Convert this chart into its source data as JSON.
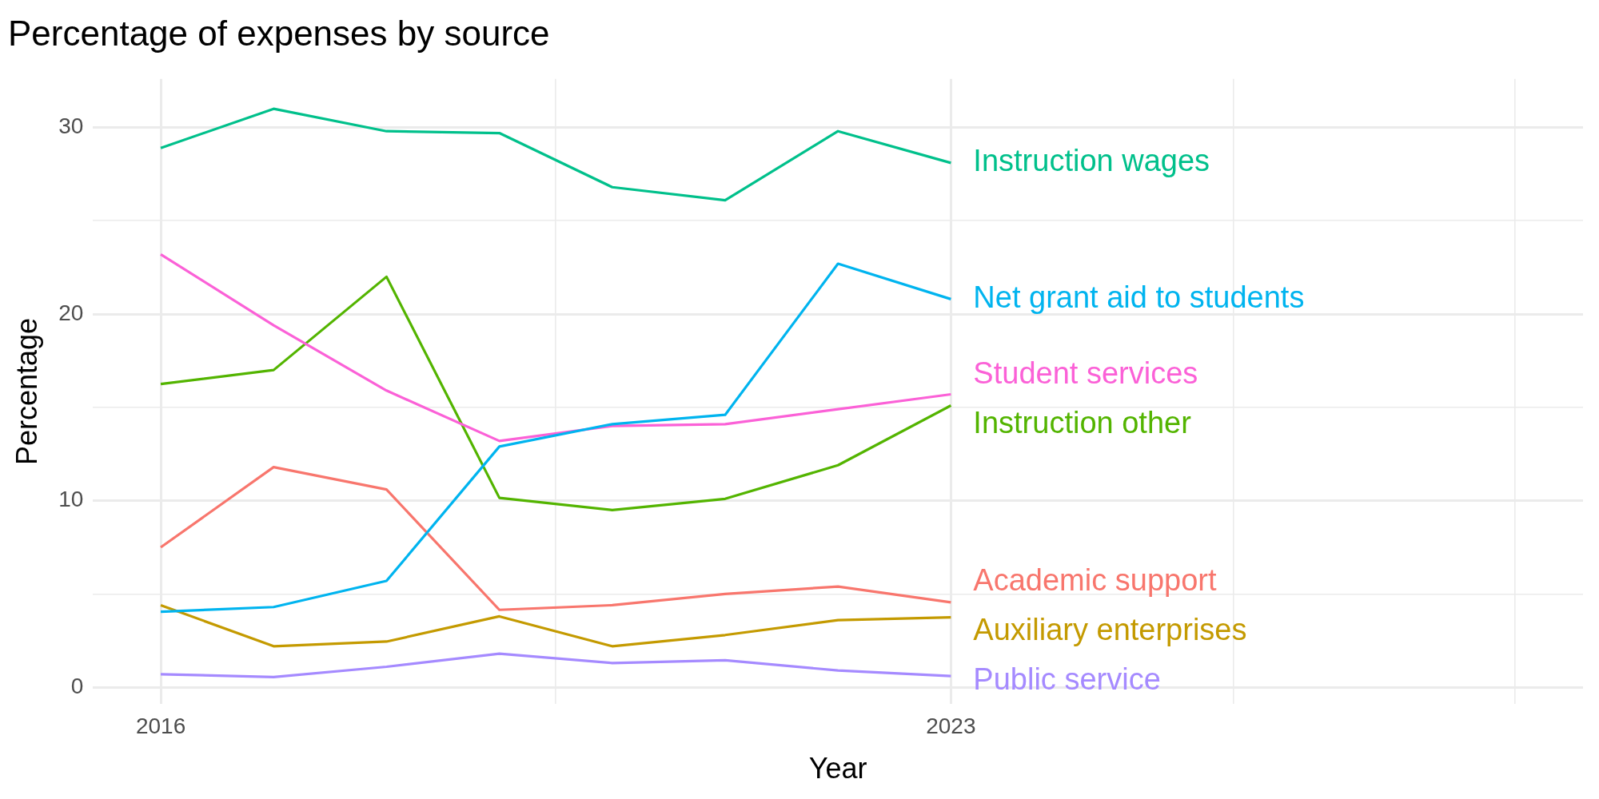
{
  "chart_data": {
    "type": "line",
    "title": "Percentage of expenses by source",
    "xlabel": "Year",
    "ylabel": "Percentage",
    "x": [
      2016,
      2017,
      2018,
      2019,
      2020,
      2021,
      2022,
      2023
    ],
    "series": [
      {
        "name": "Instruction wages",
        "color": "#00c08b",
        "values": [
          28.9,
          31.0,
          29.8,
          29.7,
          26.8,
          26.1,
          29.8,
          28.1
        ]
      },
      {
        "name": "Net grant aid to students",
        "color": "#00b4ef",
        "values": [
          4.05,
          4.3,
          5.7,
          12.9,
          14.1,
          14.6,
          22.7,
          20.8
        ]
      },
      {
        "name": "Student services",
        "color": "#fb61d7",
        "values": [
          23.2,
          19.4,
          15.9,
          13.2,
          14.0,
          14.1,
          14.9,
          15.7
        ]
      },
      {
        "name": "Instruction other",
        "color": "#53b400",
        "values": [
          16.25,
          17.0,
          22.0,
          10.15,
          9.5,
          10.1,
          11.9,
          15.1
        ]
      },
      {
        "name": "Academic support",
        "color": "#f8766d",
        "values": [
          7.5,
          11.8,
          10.6,
          4.15,
          4.4,
          5.0,
          5.4,
          4.55
        ]
      },
      {
        "name": "Auxiliary enterprises",
        "color": "#c49a00",
        "values": [
          4.4,
          2.2,
          2.45,
          3.8,
          2.2,
          2.8,
          3.6,
          3.75
        ]
      },
      {
        "name": "Public service",
        "color": "#a58aff",
        "values": [
          0.7,
          0.55,
          1.1,
          1.8,
          1.3,
          1.45,
          0.9,
          0.6
        ]
      }
    ],
    "xlim": [
      2015.4,
      2028.6
    ],
    "xticks": [
      2016,
      {
        "value": 2019.5,
        "label": null
      },
      2023,
      {
        "value": 2025.5,
        "label": null
      },
      {
        "value": 2028,
        "label": null
      }
    ],
    "ylim": [
      -0.9,
      32.6
    ],
    "yticks": [
      0,
      {
        "value": 5,
        "label": null
      },
      10,
      {
        "value": 15,
        "label": null
      },
      20,
      {
        "value": 25,
        "label": null
      },
      30
    ],
    "grid": true,
    "legend": false,
    "marker": "none",
    "line_style": "solid"
  }
}
